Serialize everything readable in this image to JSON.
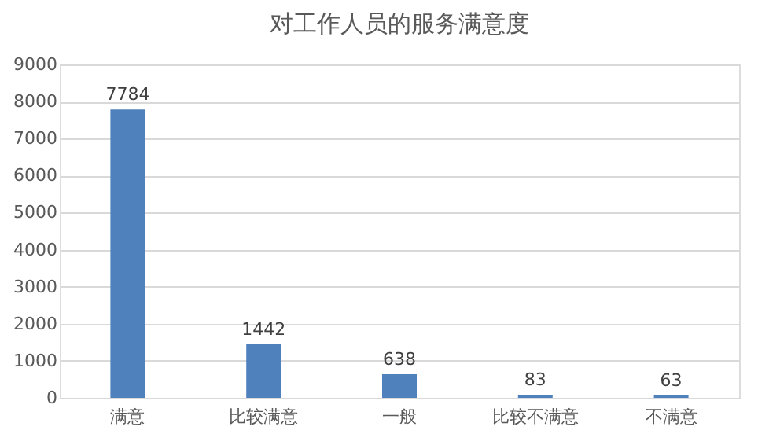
{
  "chart_data": {
    "type": "bar",
    "title": "对工作人员的服务满意度",
    "categories": [
      "满意",
      "比较满意",
      "一般",
      "比较不满意",
      "不满意"
    ],
    "values": [
      7784,
      1442,
      638,
      83,
      63
    ],
    "color": "#4f81bd",
    "ylim": [
      0,
      9000
    ],
    "yticks": [
      0,
      1000,
      2000,
      3000,
      4000,
      5000,
      6000,
      7000,
      8000,
      9000
    ],
    "grid": "y",
    "data_labels": true
  }
}
